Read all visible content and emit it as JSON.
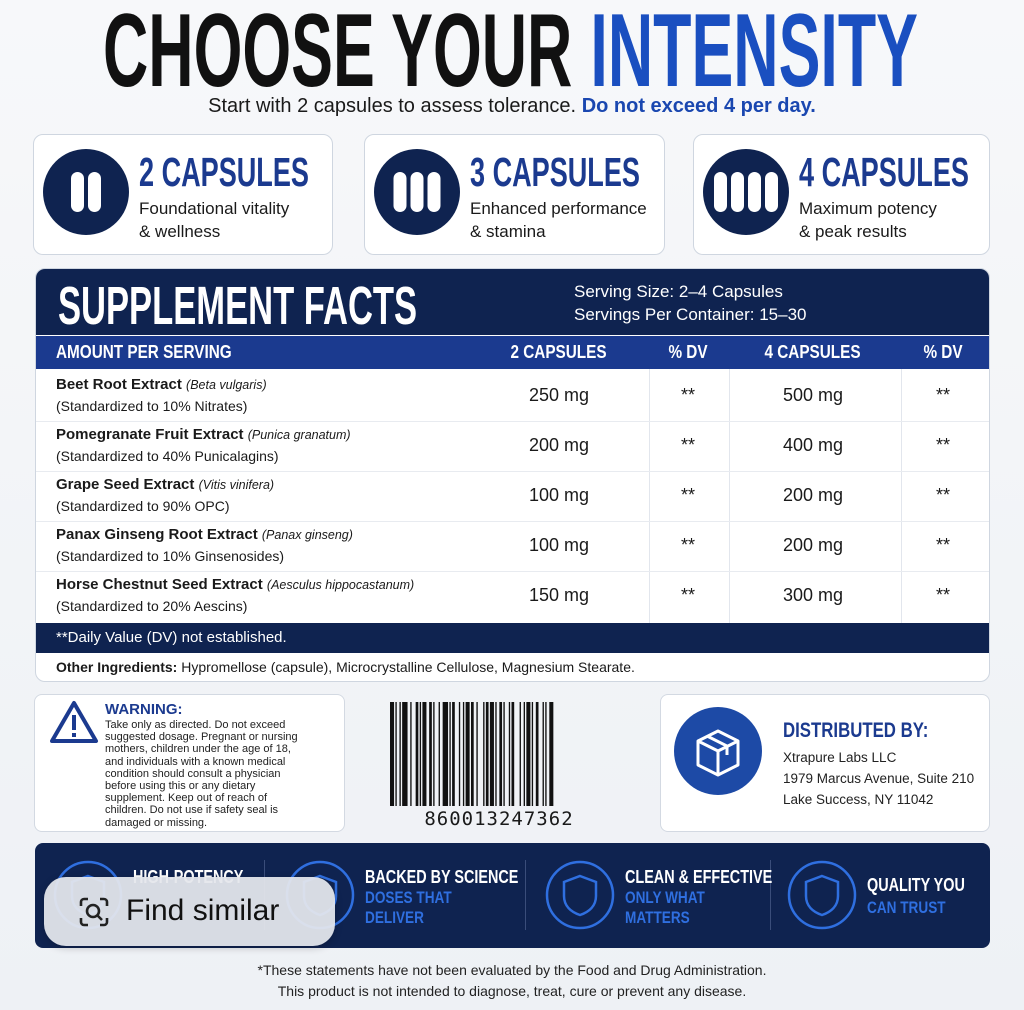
{
  "title": [
    "CHOOSE YOUR",
    "INTENSITY"
  ],
  "subtitle": [
    "Start with 2 capsules to assess tolerance.",
    "Do not exceed 4 per day."
  ],
  "cards": [
    {
      "heading": "2 CAPSULES",
      "lines": [
        "Foundational vitality",
        "& wellness"
      ]
    },
    {
      "heading": "3 CAPSULES",
      "lines": [
        "Enhanced performance",
        "& stamina"
      ]
    },
    {
      "heading": "4 CAPSULES",
      "lines": [
        "Maximum potency",
        "& peak results"
      ]
    }
  ],
  "facts": {
    "title": "SUPPLEMENT FACTS",
    "serving_size": "Serving Size: 2–4 Capsules",
    "servings_per_container": "Servings Per Container: 15–30",
    "columns": [
      "AMOUNT PER SERVING",
      "2 CAPSULES",
      "% DV",
      "4 CAPSULES",
      "% DV"
    ],
    "rows": [
      {
        "name": "Beet Root Extract",
        "latin": "(Beta vulgaris)",
        "standard": "(Standardized to 10% Nitrates)",
        "cells": [
          "250 mg",
          "**",
          "500 mg",
          "**"
        ]
      },
      {
        "name": "Pomegranate Fruit Extract",
        "latin": "(Punica granatum)",
        "standard": "(Standardized to 40% Punicalagins)",
        "cells": [
          "200 mg",
          "**",
          "400 mg",
          "**"
        ]
      },
      {
        "name": "Grape Seed Extract",
        "latin": "(Vitis vinifera)",
        "standard": "(Standardized to 90% OPC)",
        "cells": [
          "100 mg",
          "**",
          "200 mg",
          "**"
        ]
      },
      {
        "name": "Panax Ginseng Root Extract",
        "latin": "(Panax ginseng)",
        "standard": "(Standardized to 10% Ginsenosides)",
        "cells": [
          "100 mg",
          "**",
          "200 mg",
          "**"
        ]
      },
      {
        "name": "Horse Chestnut Seed Extract",
        "latin": "(Aesculus hippocastanum)",
        "standard": "(Standardized to 20% Aescins)",
        "cells": [
          "150 mg",
          "**",
          "300 mg",
          "**"
        ]
      }
    ],
    "footnote": "**Daily Value (DV) not established.",
    "other_label": "Other Ingredients:",
    "other_text": "Hypromellose (capsule), Microcrystalline Cellulose, Magnesium Stearate."
  },
  "warning": {
    "title": "WARNING:",
    "lines": [
      "Take only as directed. Do not exceed",
      "suggested dosage. Pregnant or nursing",
      "mothers, children under the age of 18,",
      "and individuals with a known medical",
      "condition should consult a physician",
      "before using this or any dietary",
      "supplement. Keep out of reach of",
      "children. Do not use if safety seal is",
      "damaged or missing."
    ]
  },
  "barcode": "860013247362",
  "distributor": {
    "title": "DISTRIBUTED BY:",
    "lines": [
      "Xtrapure Labs LLC",
      "1979 Marcus Avenue, Suite 210",
      "Lake Success, NY 11042"
    ]
  },
  "badges": [
    {
      "title": "HIGH-POTENCY"
    },
    {
      "title": "BACKED BY SCIENCE",
      "sub": [
        "DOSES THAT",
        "DELIVER"
      ]
    },
    {
      "title": "CLEAN & EFFECTIVE",
      "sub": [
        "ONLY WHAT",
        "MATTERS"
      ]
    },
    {
      "title": "QUALITY YOU",
      "sub": [
        "CAN TRUST"
      ]
    }
  ],
  "disclaimer": [
    "*These statements have not been evaluated by the Food and Drug Administration.",
    "This product is not intended to diagnose, treat, cure or prevent any disease."
  ],
  "overlay": "Find similar"
}
